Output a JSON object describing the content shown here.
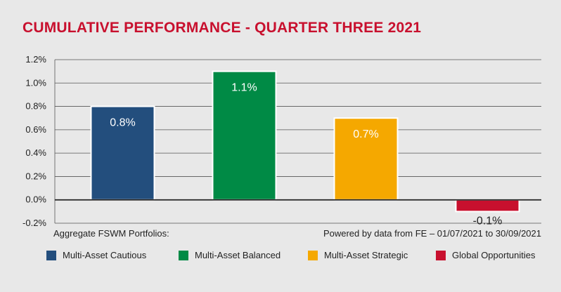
{
  "title": "CUMULATIVE PERFORMANCE - QUARTER THREE 2021",
  "title_color": "#c8102e",
  "footnote_left": "Aggregate FSWM Portfolios:",
  "footnote_right": "Powered by data from FE – 01/07/2021 to 30/09/2021",
  "chart_data": {
    "type": "bar",
    "categories": [
      "Multi-Asset Cautious",
      "Multi-Asset Balanced",
      "Multi-Asset Strategic",
      "Global Opportunities"
    ],
    "values": [
      0.8,
      1.1,
      0.7,
      -0.1
    ],
    "data_labels": [
      "0.8%",
      "1.1%",
      "0.7%",
      "-0.1%"
    ],
    "colors": [
      "#234e7d",
      "#008a45",
      "#f5a800",
      "#c8102e"
    ],
    "ylim": [
      -0.2,
      1.2
    ],
    "yticks": [
      -0.2,
      0.0,
      0.2,
      0.4,
      0.6,
      0.8,
      1.0,
      1.2
    ],
    "ytick_labels": [
      "-0.2%",
      "0.0%",
      "0.2%",
      "0.4%",
      "0.6%",
      "0.8%",
      "1.0%",
      "1.2%"
    ],
    "grid": true,
    "legend_position": "bottom"
  }
}
